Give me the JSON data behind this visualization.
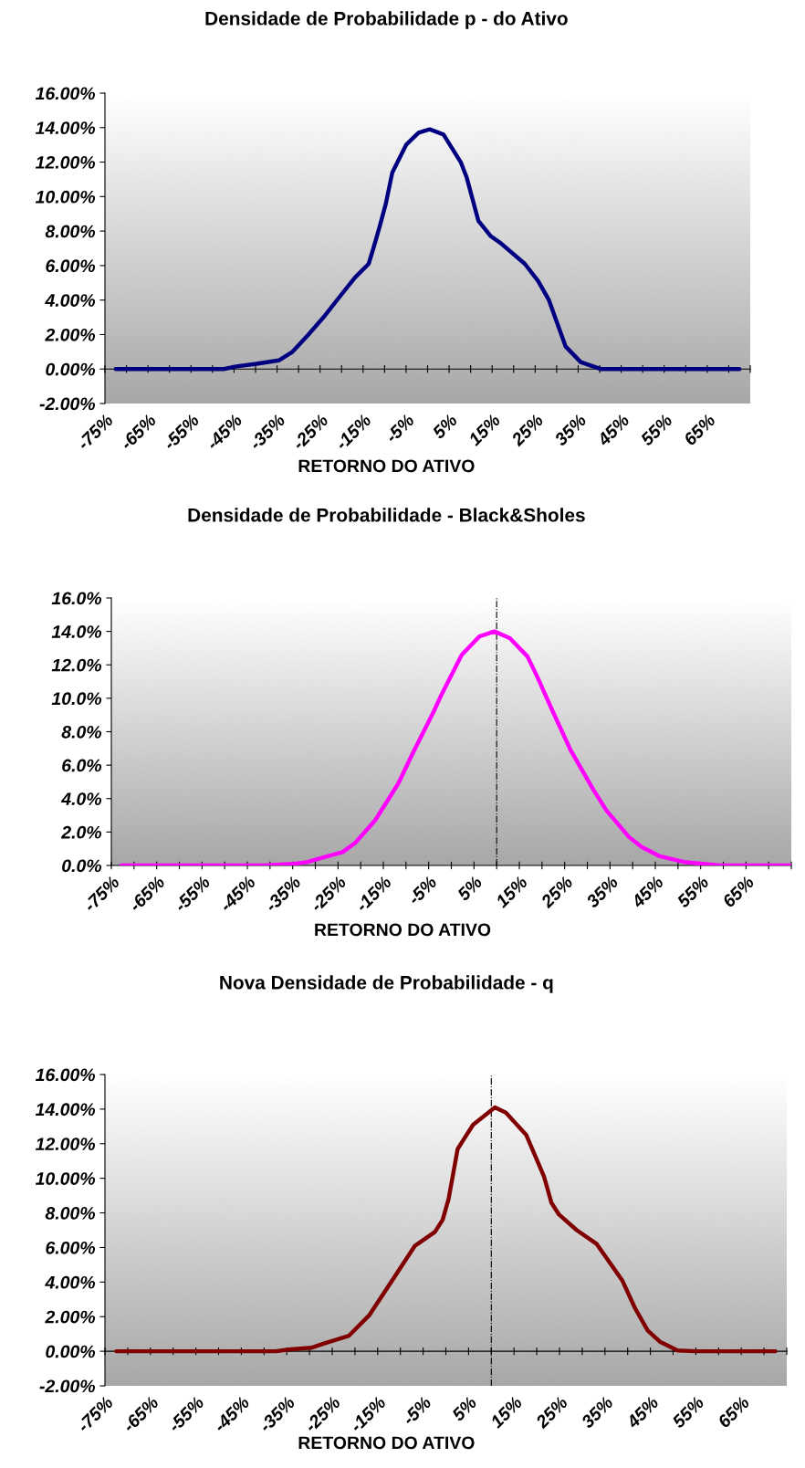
{
  "chart_data": [
    {
      "type": "line",
      "title": "Densidade de Probabilidade p - do Ativo",
      "xlabel": "RETORNO DO ATIVO",
      "series": [
        {
          "color": "#000080",
          "x": [
            -72.5,
            -65,
            -55,
            -47.4,
            -44.5,
            -39.8,
            -34.6,
            -31.4,
            -27.7,
            -24.2,
            -20.1,
            -16.9,
            -13.7,
            -12.6,
            -11.1,
            -9.7,
            -8.2,
            -5.0,
            -2.1,
            0.5,
            3.7,
            7.7,
            9.1,
            11.8,
            14.7,
            17.0,
            22.6,
            25.7,
            28.2,
            32.1,
            35.6,
            40.2,
            45,
            55,
            65,
            72.5
          ],
          "values": [
            0,
            0,
            0,
            0,
            0.15,
            0.3,
            0.5,
            1.0,
            2.0,
            3.0,
            4.3,
            5.3,
            6.1,
            7.0,
            8.3,
            9.6,
            11.4,
            13.0,
            13.7,
            13.9,
            13.6,
            12.0,
            11.1,
            8.6,
            7.7,
            7.3,
            6.1,
            5.1,
            4.0,
            1.3,
            0.4,
            0,
            0,
            0,
            0,
            0
          ]
        }
      ],
      "xlim": [
        -75,
        75
      ],
      "xticks": [
        {
          "value": -75,
          "label": "-75%"
        },
        {
          "value": -70,
          "label": null
        },
        {
          "value": -65,
          "label": "-65%"
        },
        {
          "value": -60,
          "label": null
        },
        {
          "value": -55,
          "label": "-55%"
        },
        {
          "value": -50,
          "label": null
        },
        {
          "value": -45,
          "label": "-45%"
        },
        {
          "value": -40,
          "label": null
        },
        {
          "value": -35,
          "label": "-35%"
        },
        {
          "value": -30,
          "label": null
        },
        {
          "value": -25,
          "label": "-25%"
        },
        {
          "value": -20,
          "label": null
        },
        {
          "value": -15,
          "label": "-15%"
        },
        {
          "value": -10,
          "label": null
        },
        {
          "value": -5,
          "label": "-5%"
        },
        {
          "value": 0,
          "label": null
        },
        {
          "value": 5,
          "label": "5%"
        },
        {
          "value": 10,
          "label": null
        },
        {
          "value": 15,
          "label": "15%"
        },
        {
          "value": 20,
          "label": null
        },
        {
          "value": 25,
          "label": "25%"
        },
        {
          "value": 30,
          "label": null
        },
        {
          "value": 35,
          "label": "35%"
        },
        {
          "value": 40,
          "label": null
        },
        {
          "value": 45,
          "label": "45%"
        },
        {
          "value": 50,
          "label": null
        },
        {
          "value": 55,
          "label": "55%"
        },
        {
          "value": 60,
          "label": null
        },
        {
          "value": 65,
          "label": "65%"
        },
        {
          "value": 70,
          "label": null
        },
        {
          "value": 75,
          "label": null
        }
      ],
      "ylim": [
        -2,
        16
      ],
      "yticks": [
        {
          "value": -2,
          "label": "-2.00%"
        },
        {
          "value": 0,
          "label": "0.00%"
        },
        {
          "value": 2,
          "label": "2.00%"
        },
        {
          "value": 4,
          "label": "4.00%"
        },
        {
          "value": 6,
          "label": "6.00%"
        },
        {
          "value": 8,
          "label": "8.00%"
        },
        {
          "value": 10,
          "label": "10.00%"
        },
        {
          "value": 12,
          "label": "12.00%"
        },
        {
          "value": 14,
          "label": "14.00%"
        },
        {
          "value": 16,
          "label": "16.00%"
        }
      ],
      "legend": false,
      "marker": "none",
      "line_style": "solid"
    },
    {
      "type": "line",
      "title": "Densidade de Probabilidade - Black&Sholes",
      "xlabel": "RETORNO DO ATIVO",
      "series": [
        {
          "color": "#ff00ff",
          "x": [
            -72.8,
            -65,
            -55,
            -45,
            -41.4,
            -34.7,
            -31.9,
            -28.0,
            -24.0,
            -21.2,
            -16.8,
            -11.7,
            -8.9,
            -3.9,
            -2.2,
            2.3,
            6.2,
            9.5,
            12.9,
            16.8,
            19.1,
            22.4,
            26.3,
            31.4,
            34.2,
            39.2,
            42.0,
            46.0,
            51.5,
            59.4,
            65,
            74.8
          ],
          "values": [
            0,
            0,
            0,
            0,
            0,
            0.1,
            0.2,
            0.5,
            0.8,
            1.35,
            2.7,
            4.9,
            6.5,
            9.2,
            10.2,
            12.6,
            13.7,
            14.0,
            13.6,
            12.5,
            11.2,
            9.2,
            6.9,
            4.5,
            3.3,
            1.7,
            1.1,
            0.55,
            0.2,
            0,
            0,
            0
          ]
        }
      ],
      "xlim": [
        -75,
        75
      ],
      "xticks": [
        {
          "value": -75,
          "label": "-75%"
        },
        {
          "value": -70,
          "label": null
        },
        {
          "value": -65,
          "label": "-65%"
        },
        {
          "value": -60,
          "label": null
        },
        {
          "value": -55,
          "label": "-55%"
        },
        {
          "value": -50,
          "label": null
        },
        {
          "value": -45,
          "label": "-45%"
        },
        {
          "value": -40,
          "label": null
        },
        {
          "value": -35,
          "label": "-35%"
        },
        {
          "value": -30,
          "label": null
        },
        {
          "value": -25,
          "label": "-25%"
        },
        {
          "value": -20,
          "label": null
        },
        {
          "value": -15,
          "label": "-15%"
        },
        {
          "value": -10,
          "label": null
        },
        {
          "value": -5,
          "label": "-5%"
        },
        {
          "value": 0,
          "label": null
        },
        {
          "value": 5,
          "label": "5%"
        },
        {
          "value": 10,
          "label": null
        },
        {
          "value": 15,
          "label": "15%"
        },
        {
          "value": 20,
          "label": null
        },
        {
          "value": 25,
          "label": "25%"
        },
        {
          "value": 30,
          "label": null
        },
        {
          "value": 35,
          "label": "35%"
        },
        {
          "value": 40,
          "label": null
        },
        {
          "value": 45,
          "label": "45%"
        },
        {
          "value": 50,
          "label": null
        },
        {
          "value": 55,
          "label": "55%"
        },
        {
          "value": 60,
          "label": null
        },
        {
          "value": 65,
          "label": "65%"
        },
        {
          "value": 70,
          "label": null
        },
        {
          "value": 75,
          "label": null
        }
      ],
      "ylim": [
        0,
        16
      ],
      "yticks": [
        {
          "value": 0,
          "label": "0.0%"
        },
        {
          "value": 2,
          "label": "2.0%"
        },
        {
          "value": 4,
          "label": "4.0%"
        },
        {
          "value": 6,
          "label": "6.0%"
        },
        {
          "value": 8,
          "label": "8.0%"
        },
        {
          "value": 10,
          "label": "10.0%"
        },
        {
          "value": 12,
          "label": "12.0%"
        },
        {
          "value": 14,
          "label": "14.0%"
        },
        {
          "value": 16,
          "label": "16.0%"
        }
      ],
      "ref_lines": [
        {
          "axis": "x",
          "value": 10,
          "color": "#000000",
          "line_style": "dashdot"
        }
      ],
      "grid": false,
      "legend": false,
      "marker": "none",
      "line_style": "solid"
    },
    {
      "type": "line",
      "title": "Nova Densidade de Probabilidade - q",
      "xlabel": "RETORNO DO ATIVO",
      "series": [
        {
          "color": "#800000",
          "x": [
            -72.5,
            -65,
            -55,
            -45,
            -37.4,
            -34.6,
            -29.6,
            -26.8,
            -21.3,
            -16.8,
            -11.8,
            -6.8,
            -2.4,
            -0.7,
            0.6,
            2.6,
            6.0,
            10.8,
            13.2,
            17.7,
            21.6,
            23.2,
            24.9,
            28.8,
            33.2,
            38.8,
            41.6,
            44.4,
            47.1,
            51.0,
            55,
            65,
            72.5
          ],
          "values": [
            0,
            0,
            0,
            0,
            0,
            0.1,
            0.2,
            0.45,
            0.9,
            2.1,
            4.1,
            6.1,
            6.9,
            7.6,
            8.8,
            11.7,
            13.1,
            14.1,
            13.8,
            12.5,
            10.1,
            8.6,
            7.9,
            7.0,
            6.2,
            4.1,
            2.5,
            1.2,
            0.55,
            0.05,
            0,
            0,
            0
          ]
        }
      ],
      "xlim": [
        -75,
        75
      ],
      "xticks": [
        {
          "value": -75,
          "label": "-75%"
        },
        {
          "value": -70,
          "label": null
        },
        {
          "value": -65,
          "label": "-65%"
        },
        {
          "value": -60,
          "label": null
        },
        {
          "value": -55,
          "label": "-55%"
        },
        {
          "value": -50,
          "label": null
        },
        {
          "value": -45,
          "label": "-45%"
        },
        {
          "value": -40,
          "label": null
        },
        {
          "value": -35,
          "label": "-35%"
        },
        {
          "value": -30,
          "label": null
        },
        {
          "value": -25,
          "label": "-25%"
        },
        {
          "value": -20,
          "label": null
        },
        {
          "value": -15,
          "label": "-15%"
        },
        {
          "value": -10,
          "label": null
        },
        {
          "value": -5,
          "label": "-5%"
        },
        {
          "value": 0,
          "label": null
        },
        {
          "value": 5,
          "label": "5%"
        },
        {
          "value": 10,
          "label": null
        },
        {
          "value": 15,
          "label": "15%"
        },
        {
          "value": 20,
          "label": null
        },
        {
          "value": 25,
          "label": "25%"
        },
        {
          "value": 30,
          "label": null
        },
        {
          "value": 35,
          "label": "35%"
        },
        {
          "value": 40,
          "label": null
        },
        {
          "value": 45,
          "label": "45%"
        },
        {
          "value": 50,
          "label": null
        },
        {
          "value": 55,
          "label": "55%"
        },
        {
          "value": 60,
          "label": null
        },
        {
          "value": 65,
          "label": "65%"
        },
        {
          "value": 70,
          "label": null
        },
        {
          "value": 75,
          "label": null
        }
      ],
      "ylim": [
        -2,
        16
      ],
      "yticks": [
        {
          "value": -2,
          "label": "-2.00%"
        },
        {
          "value": 0,
          "label": "0.00%"
        },
        {
          "value": 2,
          "label": "2.00%"
        },
        {
          "value": 4,
          "label": "4.00%"
        },
        {
          "value": 6,
          "label": "6.00%"
        },
        {
          "value": 8,
          "label": "8.00%"
        },
        {
          "value": 10,
          "label": "10.00%"
        },
        {
          "value": 12,
          "label": "12.00%"
        },
        {
          "value": 14,
          "label": "14.00%"
        },
        {
          "value": 16,
          "label": "16.00%"
        }
      ],
      "ref_lines": [
        {
          "axis": "x",
          "value": 10,
          "color": "#000000",
          "line_style": "dashdot"
        }
      ],
      "grid": false,
      "legend": false,
      "marker": "none",
      "line_style": "solid"
    }
  ]
}
